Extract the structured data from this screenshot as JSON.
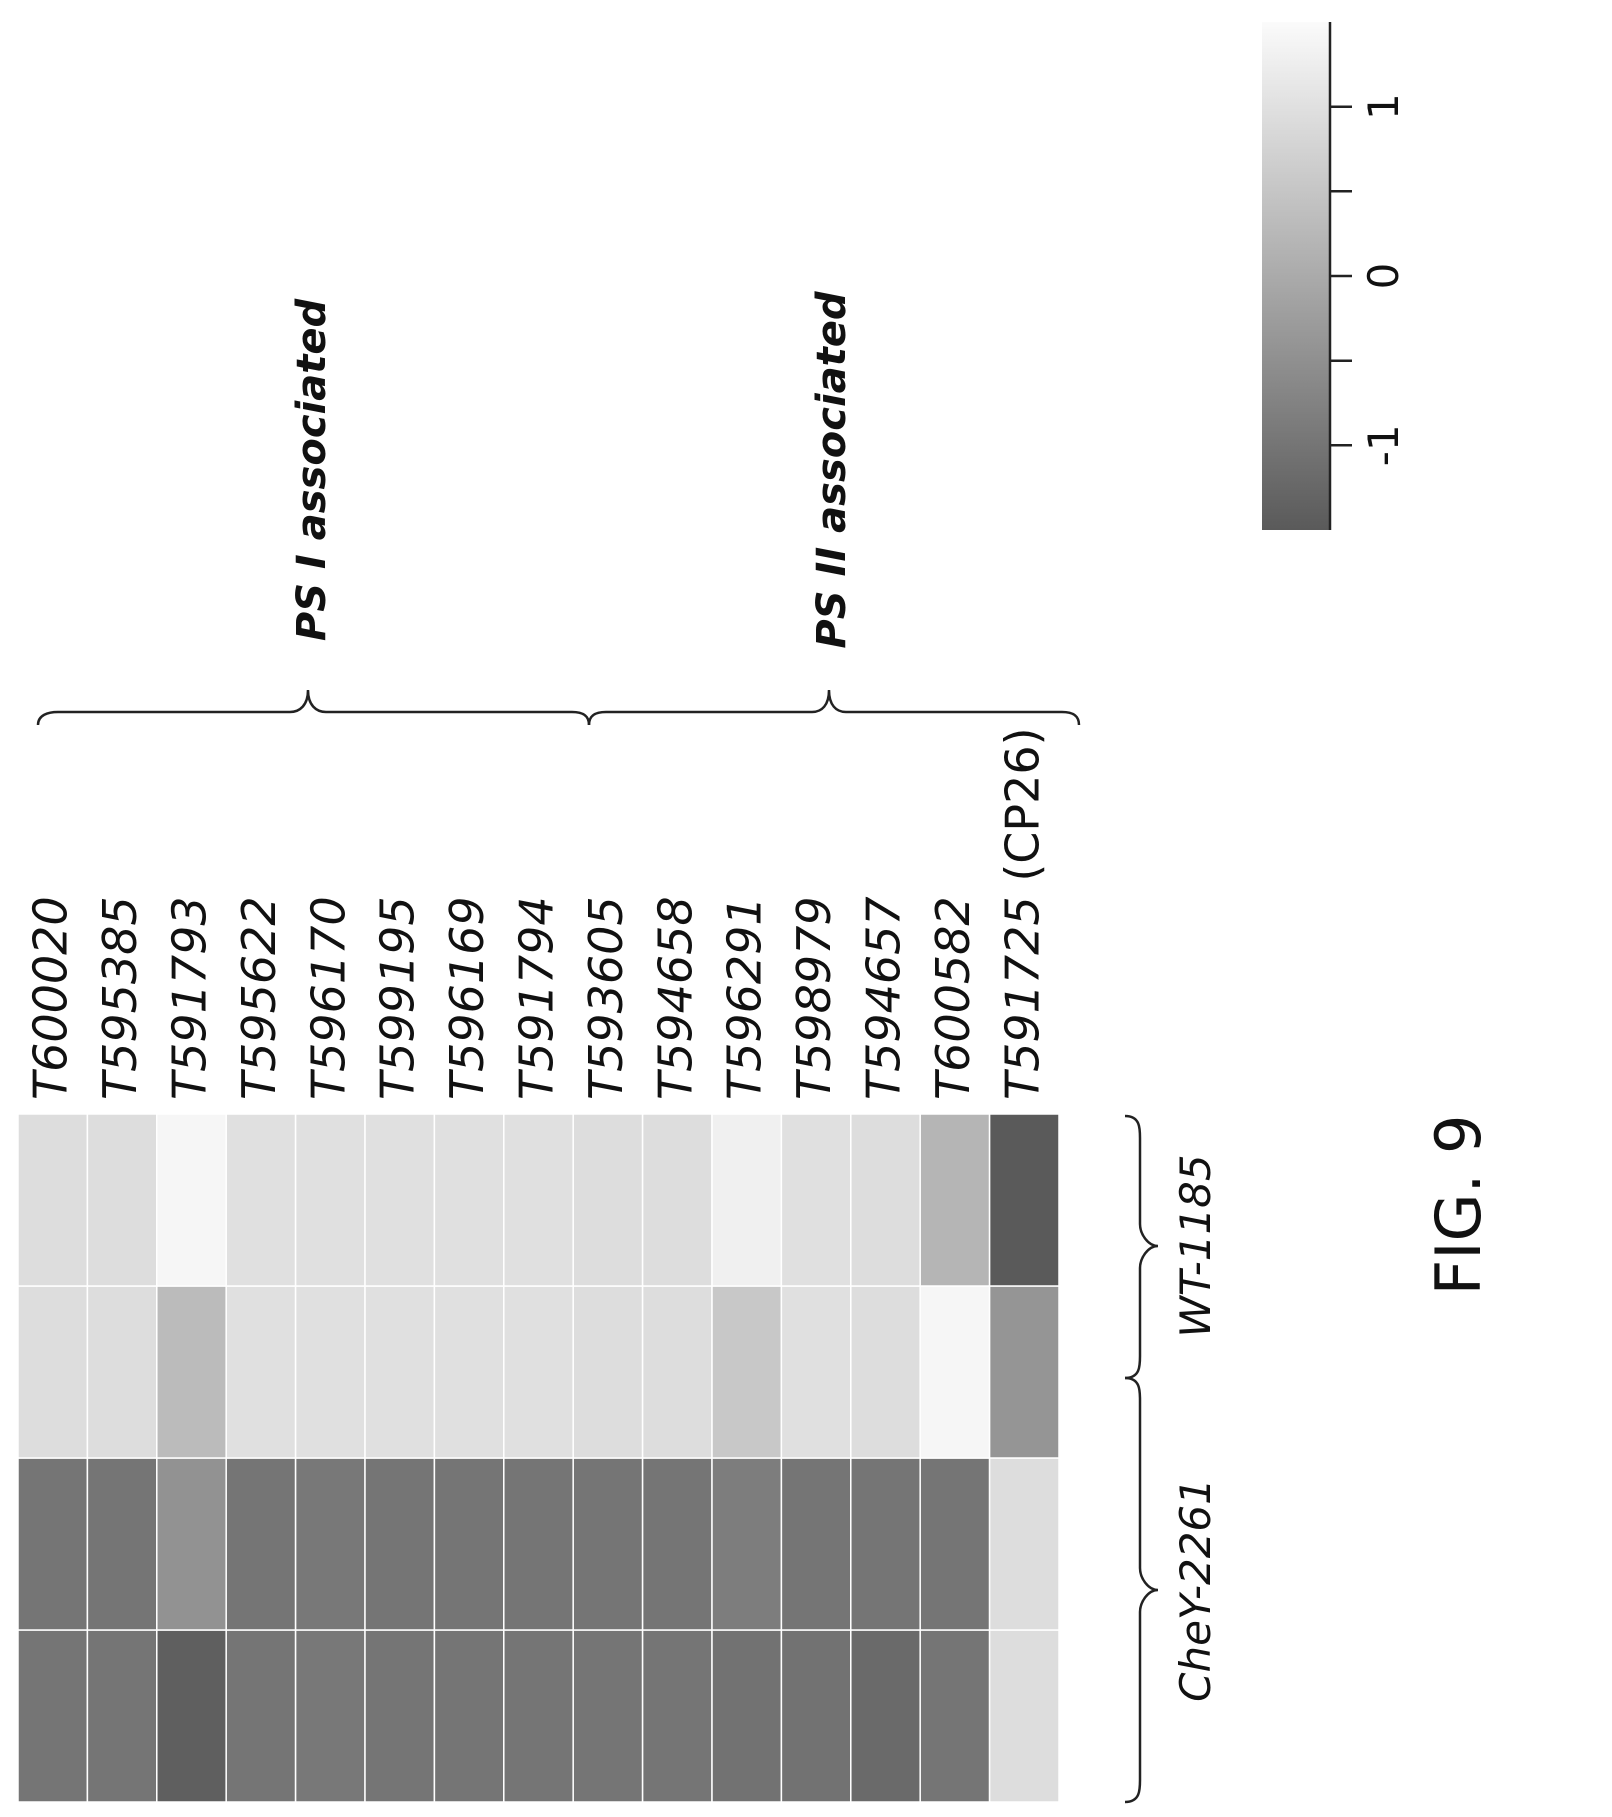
{
  "figure_label": "FIG. 9",
  "chart_data": {
    "type": "heatmap",
    "genes": [
      {
        "id": "T600020",
        "note": ""
      },
      {
        "id": "T595385",
        "note": ""
      },
      {
        "id": "T591793",
        "note": ""
      },
      {
        "id": "T595622",
        "note": ""
      },
      {
        "id": "T596170",
        "note": ""
      },
      {
        "id": "T599195",
        "note": ""
      },
      {
        "id": "T596169",
        "note": ""
      },
      {
        "id": "T591794",
        "note": ""
      },
      {
        "id": "T593605",
        "note": ""
      },
      {
        "id": "T594658",
        "note": ""
      },
      {
        "id": "T596291",
        "note": ""
      },
      {
        "id": "T598979",
        "note": ""
      },
      {
        "id": "T594657",
        "note": ""
      },
      {
        "id": "T600582",
        "note": ""
      },
      {
        "id": "T591725",
        "note": "(CP26)"
      }
    ],
    "groups": [
      {
        "label": "PS I associated",
        "first_gene": 0,
        "last_gene": 7
      },
      {
        "label": "PS II associated",
        "first_gene": 8,
        "last_gene": 14
      }
    ],
    "samples": [
      {
        "label": "CheY-2261",
        "replicates": 2
      },
      {
        "label": "WT-1185",
        "replicates": 2
      }
    ],
    "values": [
      [
        -1.0,
        -1.0,
        0.95,
        0.95
      ],
      [
        -1.0,
        -1.0,
        0.95,
        0.95
      ],
      [
        -1.4,
        -0.45,
        0.3,
        1.4
      ],
      [
        -1.0,
        -1.0,
        1.0,
        1.0
      ],
      [
        -0.95,
        -0.95,
        1.0,
        1.0
      ],
      [
        -1.0,
        -1.0,
        1.0,
        1.0
      ],
      [
        -1.0,
        -1.0,
        1.0,
        1.0
      ],
      [
        -1.0,
        -1.0,
        1.0,
        1.0
      ],
      [
        -1.0,
        -1.0,
        0.95,
        0.95
      ],
      [
        -1.0,
        -1.0,
        0.95,
        0.95
      ],
      [
        -1.05,
        -0.85,
        0.55,
        1.3
      ],
      [
        -1.05,
        -1.0,
        1.0,
        1.0
      ],
      [
        -1.2,
        -1.0,
        0.95,
        0.95
      ],
      [
        -1.0,
        -1.0,
        1.4,
        0.2
      ],
      [
        0.95,
        0.95,
        -0.4,
        -1.5
      ]
    ],
    "color_scale": {
      "min": -1.5,
      "max": 1.5,
      "low_color": "#5a5a5a",
      "high_color": "#fbfbfb",
      "ticks": [
        "-1",
        "0",
        "1"
      ]
    },
    "legend_placement": "top-right"
  }
}
